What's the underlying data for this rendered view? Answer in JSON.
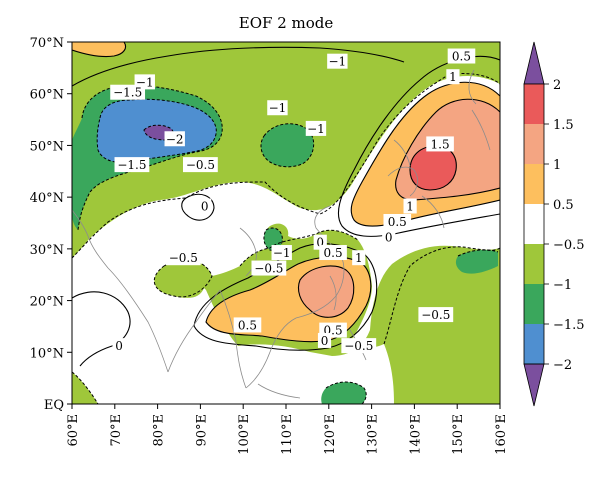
{
  "chart_data": {
    "type": "contour-map",
    "title": "EOF 2 mode",
    "x_ticks": [
      "60°E",
      "70°E",
      "80°E",
      "90°E",
      "100°E",
      "110°E",
      "120°E",
      "130°E",
      "140°E",
      "150°E",
      "160°E"
    ],
    "y_ticks": [
      "EQ",
      "10°N",
      "20°N",
      "30°N",
      "40°N",
      "50°N",
      "60°N",
      "70°N"
    ],
    "xlim": [
      60,
      160
    ],
    "ylim": [
      0,
      70
    ],
    "colorbar": {
      "levels": [
        2,
        1.5,
        1,
        0.5,
        -0.5,
        -1,
        -1.5,
        -2
      ],
      "labels": [
        "2",
        "1.5",
        "1",
        "0.5",
        "−0.5",
        "−1",
        "−1.5",
        "−2"
      ],
      "colors": {
        "above_2": "#7b4f9e",
        "1.5_2": "#ea5a5a",
        "1_1.5": "#f4a582",
        "0.5_1": "#fdbf5e",
        "-0.5_0.5": "#ffffff",
        "-1_-0.5": "#9fc73a",
        "-1.5_-1": "#3aa75c",
        "-2_-1.5": "#4f8fd0",
        "below_-2": "#7b4f9e"
      }
    },
    "contour_labels": [
      {
        "text": "−1",
        "lon": 77,
        "lat": 62
      },
      {
        "text": "−1.5",
        "lon": 73,
        "lat": 60
      },
      {
        "text": "−1",
        "lon": 122,
        "lat": 66
      },
      {
        "text": "0.5",
        "lon": 151,
        "lat": 67
      },
      {
        "text": "1",
        "lon": 149,
        "lat": 63
      },
      {
        "text": "−1",
        "lon": 108,
        "lat": 57
      },
      {
        "text": "−1",
        "lon": 117,
        "lat": 53
      },
      {
        "text": "−2",
        "lon": 84,
        "lat": 51
      },
      {
        "text": "1.5",
        "lon": 146,
        "lat": 50
      },
      {
        "text": "−1.5",
        "lon": 74,
        "lat": 46
      },
      {
        "text": "−0.5",
        "lon": 90,
        "lat": 46
      },
      {
        "text": "0",
        "lon": 91,
        "lat": 38
      },
      {
        "text": "1",
        "lon": 139,
        "lat": 38
      },
      {
        "text": "0.5",
        "lon": 136,
        "lat": 35
      },
      {
        "text": "0",
        "lon": 134,
        "lat": 32
      },
      {
        "text": "0",
        "lon": 118,
        "lat": 31
      },
      {
        "text": "0.5",
        "lon": 121,
        "lat": 29
      },
      {
        "text": "−1",
        "lon": 109,
        "lat": 29
      },
      {
        "text": "1",
        "lon": 127,
        "lat": 28
      },
      {
        "text": "−0.5",
        "lon": 86,
        "lat": 28
      },
      {
        "text": "−0.5",
        "lon": 106,
        "lat": 26
      },
      {
        "text": "0.5",
        "lon": 101,
        "lat": 15
      },
      {
        "text": "0.5",
        "lon": 121,
        "lat": 14
      },
      {
        "text": "0",
        "lon": 119,
        "lat": 12
      },
      {
        "text": "−0.5",
        "lon": 127,
        "lat": 11
      },
      {
        "text": "−0.5",
        "lon": 145,
        "lat": 17
      },
      {
        "text": "0",
        "lon": 71,
        "lat": 11
      }
    ]
  }
}
